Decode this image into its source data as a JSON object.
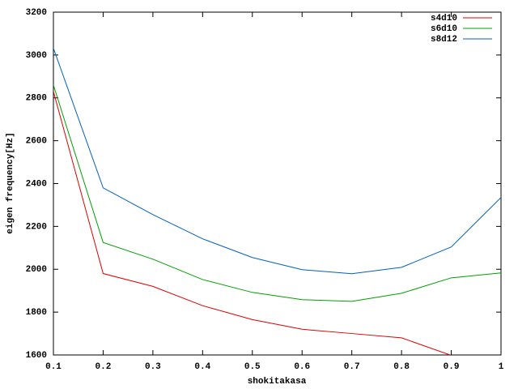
{
  "chart_data": {
    "type": "line",
    "xlabel": "shokitakasa",
    "ylabel": "eigen frequency[Hz]",
    "x": [
      0.1,
      0.2,
      0.3,
      0.4,
      0.5,
      0.6,
      0.7,
      0.8,
      0.9,
      1
    ],
    "series": [
      {
        "name": "s4d10",
        "color": "#e00000",
        "values": [
          2830,
          1980,
          1920,
          1830,
          1765,
          1720,
          1700,
          1680,
          1598,
          null
        ]
      },
      {
        "name": "s6d10",
        "color": "#00a000",
        "values": [
          2860,
          2125,
          2047,
          1952,
          1892,
          1858,
          1850,
          1888,
          1960,
          1983
        ]
      },
      {
        "name": "s8d12",
        "color": "#0060c0",
        "values": [
          3032,
          2380,
          2255,
          2142,
          2055,
          1998,
          1979,
          2009,
          2104,
          2335
        ]
      }
    ],
    "xlim": [
      0.1,
      1
    ],
    "xticks": [
      0.1,
      0.2,
      0.3,
      0.4,
      0.5,
      0.6,
      0.7,
      0.8,
      0.9,
      1
    ],
    "ylim": [
      1600,
      3200
    ],
    "yticks": [
      1600,
      1800,
      2000,
      2200,
      2400,
      2600,
      2800,
      3000,
      3200
    ],
    "legend": "top-right",
    "grid": false
  }
}
